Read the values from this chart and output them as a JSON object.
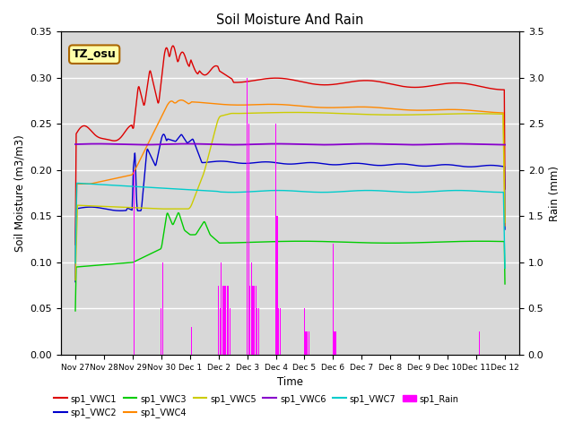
{
  "title": "Soil Moisture And Rain",
  "xlabel": "Time",
  "ylabel_left": "Soil Moisture (m3/m3)",
  "ylabel_right": "Rain (mm)",
  "ylim_left": [
    0,
    0.35
  ],
  "ylim_right": [
    0,
    3.5
  ],
  "annotation": "TZ_osu",
  "background_color": "#d8d8d8",
  "line_colors": {
    "VWC1": "#dd0000",
    "VWC2": "#0000cc",
    "VWC3": "#00cc00",
    "VWC4": "#ff8800",
    "VWC5": "#cccc00",
    "VWC6": "#8800cc",
    "VWC7": "#00cccc",
    "Rain": "#ff00ff"
  },
  "xtick_labels": [
    "Nov 27",
    "Nov 28",
    "Nov 29",
    "Nov 30",
    "Dec 1",
    "Dec 2",
    "Dec 3",
    "Dec 4",
    "Dec 5",
    "Dec 6",
    "Dec 7",
    "Dec 8",
    "Dec 9",
    "Dec 10",
    "Dec 11",
    "Dec 12"
  ],
  "num_points": 2000
}
